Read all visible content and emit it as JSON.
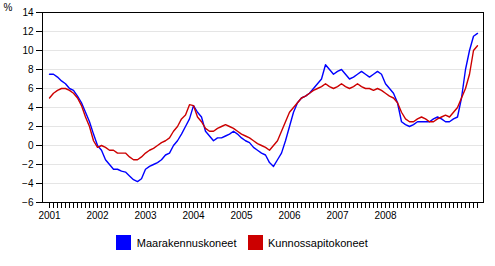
{
  "chart_data": {
    "type": "line",
    "ylabel": "%",
    "ylim": [
      -6,
      14
    ],
    "yticks": [
      -6,
      -4,
      -2,
      0,
      2,
      4,
      6,
      8,
      10,
      12,
      14
    ],
    "grid": true,
    "legend": "bottom",
    "categories": [
      "2001",
      null,
      null,
      null,
      null,
      null,
      null,
      null,
      null,
      null,
      null,
      null,
      "2002",
      null,
      null,
      null,
      null,
      null,
      null,
      null,
      null,
      null,
      null,
      null,
      "2003",
      null,
      null,
      null,
      null,
      null,
      null,
      null,
      null,
      null,
      null,
      null,
      "2004",
      null,
      null,
      null,
      null,
      null,
      null,
      null,
      null,
      null,
      null,
      null,
      "2005",
      null,
      null,
      null,
      null,
      null,
      null,
      null,
      null,
      null,
      null,
      null,
      "2006",
      null,
      null,
      null,
      null,
      null,
      null,
      null,
      null,
      null,
      null,
      null,
      "2007",
      null,
      null,
      null,
      null,
      null,
      null,
      null,
      null,
      null,
      null,
      null,
      "2008",
      null,
      null,
      null,
      null,
      null,
      null,
      null,
      null,
      null,
      null,
      null,
      null,
      null,
      null,
      null,
      null,
      null,
      null,
      null,
      null,
      null,
      null,
      null
    ],
    "series": [
      {
        "name": "Maarakennuskoneet",
        "color": "#0000FF",
        "values": [
          7.5,
          7.5,
          7.2,
          6.8,
          6.5,
          6.0,
          5.8,
          5.2,
          4.5,
          3.5,
          2.5,
          1.2,
          0.0,
          -0.5,
          -1.5,
          -2.0,
          -2.5,
          -2.5,
          -2.7,
          -2.8,
          -3.2,
          -3.6,
          -3.8,
          -3.5,
          -2.5,
          -2.2,
          -2.0,
          -1.8,
          -1.5,
          -1.0,
          -0.8,
          0.0,
          0.5,
          1.2,
          2.0,
          2.8,
          4.2,
          3.5,
          3.0,
          1.5,
          1.0,
          0.5,
          0.8,
          0.8,
          1.0,
          1.2,
          1.5,
          1.2,
          0.8,
          0.5,
          0.3,
          -0.2,
          -0.5,
          -0.8,
          -1.0,
          -1.8,
          -2.2,
          -1.5,
          -0.8,
          0.5,
          2.0,
          3.5,
          4.5,
          5.0,
          5.2,
          5.5,
          6.0,
          6.5,
          7.0,
          8.5,
          8.0,
          7.5,
          7.8,
          8.0,
          7.5,
          7.0,
          7.2,
          7.5,
          7.8,
          7.5,
          7.2,
          7.5,
          7.8,
          7.5,
          6.5,
          6.0,
          5.5,
          4.5,
          2.5,
          2.2,
          2.0,
          2.2,
          2.5,
          2.5,
          2.5,
          2.5,
          2.8,
          3.0,
          2.8,
          2.5,
          2.5,
          2.8,
          3.0,
          5.0,
          8.0,
          10.0,
          11.5,
          11.8
        ]
      },
      {
        "name": "Kunnossapitokoneet",
        "color": "#CC0000",
        "values": [
          5.0,
          5.5,
          5.8,
          6.0,
          6.0,
          5.8,
          5.5,
          5.0,
          4.2,
          3.0,
          2.0,
          0.5,
          -0.2,
          0.0,
          -0.2,
          -0.5,
          -0.5,
          -0.8,
          -0.8,
          -0.8,
          -1.2,
          -1.5,
          -1.5,
          -1.2,
          -0.8,
          -0.5,
          -0.3,
          0.0,
          0.3,
          0.5,
          0.8,
          1.5,
          2.0,
          2.8,
          3.2,
          4.3,
          4.2,
          3.0,
          2.5,
          1.8,
          1.5,
          1.5,
          1.8,
          2.0,
          2.2,
          2.0,
          1.8,
          1.5,
          1.2,
          1.0,
          0.8,
          0.5,
          0.2,
          0.0,
          -0.2,
          -0.5,
          0.0,
          0.5,
          1.5,
          2.5,
          3.5,
          4.0,
          4.5,
          5.0,
          5.2,
          5.5,
          5.8,
          6.0,
          6.2,
          6.5,
          6.2,
          6.0,
          6.2,
          6.5,
          6.2,
          6.0,
          6.2,
          6.5,
          6.2,
          6.0,
          6.0,
          5.8,
          6.0,
          5.8,
          5.5,
          5.2,
          5.0,
          4.5,
          3.5,
          2.8,
          2.5,
          2.5,
          2.8,
          3.0,
          2.8,
          2.5,
          2.5,
          2.8,
          3.0,
          3.2,
          3.0,
          3.5,
          4.0,
          5.0,
          6.0,
          7.5,
          10.0,
          10.5
        ]
      }
    ]
  }
}
